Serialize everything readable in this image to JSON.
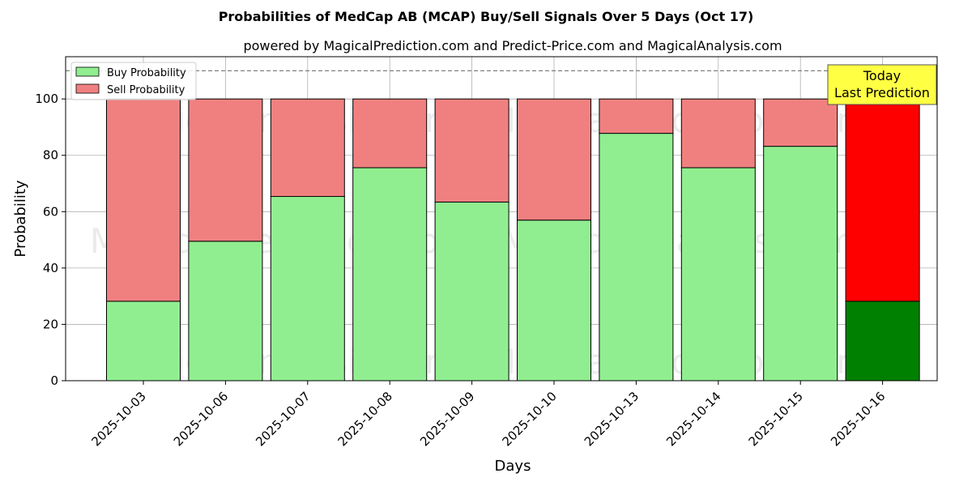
{
  "chart_data": {
    "type": "bar",
    "stacked": true,
    "title": "Probabilities of MedCap AB (MCAP) Buy/Sell Signals Over 5 Days (Oct 17)",
    "subtitle": "powered by MagicalPrediction.com and Predict-Price.com and MagicalAnalysis.com",
    "xlabel": "Days",
    "ylabel": "Probability",
    "ylim": [
      0,
      115
    ],
    "yticks": [
      0,
      20,
      40,
      60,
      80,
      100
    ],
    "grid": true,
    "legend_position": "top-left",
    "categories": [
      "2025-10-03",
      "2025-10-06",
      "2025-10-07",
      "2025-10-08",
      "2025-10-09",
      "2025-10-10",
      "2025-10-13",
      "2025-10-14",
      "2025-10-15",
      "2025-10-16"
    ],
    "series": [
      {
        "name": "Buy Probability",
        "color": "#90EE90",
        "highlight_color": "#008000",
        "values": [
          28.2,
          49.5,
          65.4,
          75.6,
          63.4,
          57.0,
          87.8,
          75.6,
          83.2,
          28.2
        ]
      },
      {
        "name": "Sell Probability",
        "color": "#F08080",
        "highlight_color": "#FF0000",
        "values": [
          71.8,
          50.5,
          34.6,
          24.4,
          36.6,
          43.0,
          12.2,
          24.4,
          16.8,
          71.8
        ]
      }
    ],
    "reference_line": {
      "y": 110,
      "style": "dashed",
      "color": "#808080"
    },
    "annotation": {
      "lines": [
        "Today",
        "Last Prediction"
      ],
      "category_index": 9,
      "background": "#FFFF44"
    },
    "watermarks": [
      "MagicalAnalysis.com",
      "MagicalPrediction.com"
    ]
  }
}
